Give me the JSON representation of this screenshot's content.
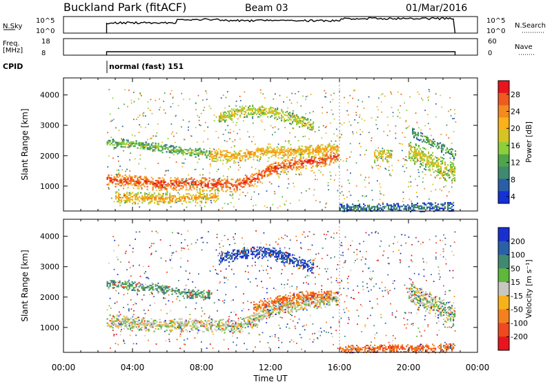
{
  "header": {
    "station": "Buckland Park (fitACF)",
    "beam": "Beam 03",
    "date": "01/Mar/2016"
  },
  "panels": {
    "nsky": {
      "label": "N.Sky",
      "top_tick": "10^5",
      "bottom_tick": "10^0",
      "right_label": "N.Search",
      "right_top": "10^5",
      "right_bottom": "10^0"
    },
    "freq": {
      "label": "Freq.",
      "unit": "[MHz]",
      "top_tick": "18",
      "bottom_tick": "8",
      "right_label": "Nave",
      "right_top": "60",
      "right_bottom": "0"
    },
    "cpid": {
      "label": "CPID",
      "value": "normal (fast) 151"
    }
  },
  "colorbars": {
    "power": {
      "label": "Power [dB]",
      "ticks": [
        "28",
        "24",
        "20",
        "16",
        "12",
        "8",
        "4"
      ],
      "colors": [
        "#e8141e",
        "#ef5a1e",
        "#f58a1f",
        "#f9b21b",
        "#d7c424",
        "#8ccf3a",
        "#4ea54a",
        "#3f8a70",
        "#2a5fa8",
        "#1430d6"
      ]
    },
    "velocity": {
      "label": "Velocity [m s⁻¹]",
      "ticks": [
        "200",
        "100",
        "50",
        "15",
        "-15",
        "-50",
        "-100",
        "-200"
      ],
      "colors": [
        "#1a2fd0",
        "#2a60a8",
        "#3f8a70",
        "#5db83c",
        "#c8c8c0",
        "#f7b21a",
        "#f5801f",
        "#ef4a1f",
        "#e8141e"
      ]
    }
  },
  "chart_data": [
    {
      "type": "heatmap",
      "title": "Power",
      "xlabel": "",
      "ylabel": "Slant Range [km]",
      "x_ticks": [
        "00:00",
        "04:00",
        "08:00",
        "12:00",
        "16:00",
        "20:00",
        "00:00"
      ],
      "y_ticks": [
        "1000",
        "2000",
        "3000",
        "4000"
      ],
      "xlim": [
        0,
        24
      ],
      "ylim": [
        180,
        4560
      ],
      "units": "dB",
      "bands": [
        {
          "x": [
            2.5,
            4.0,
            5.5,
            7.0,
            8.5,
            10.0,
            11.0,
            12.0,
            13.5,
            15.0,
            15.9
          ],
          "y": [
            1250,
            1180,
            1100,
            1120,
            1100,
            1050,
            1250,
            1600,
            1780,
            1900,
            2000
          ],
          "w": 220,
          "value": 28
        },
        {
          "x": [
            2.5,
            4.0,
            5.5,
            7.0,
            8.5
          ],
          "y": [
            2450,
            2400,
            2300,
            2150,
            2100
          ],
          "w": 150,
          "value": 14
        },
        {
          "x": [
            3.0,
            4.5,
            6.0,
            7.5,
            9.0
          ],
          "y": [
            650,
            620,
            600,
            640,
            700
          ],
          "w": 180,
          "value": 22
        },
        {
          "x": [
            8.5,
            10.0,
            11.5,
            13.0,
            14.5,
            15.9
          ],
          "y": [
            2050,
            2000,
            2150,
            2150,
            2200,
            2250
          ],
          "w": 200,
          "value": 22
        },
        {
          "x": [
            9.0,
            10.5,
            12.0,
            13.5,
            14.5
          ],
          "y": [
            3300,
            3500,
            3500,
            3200,
            3000
          ],
          "w": 200,
          "value": 18
        },
        {
          "x": [
            20.0,
            21.0,
            22.0,
            22.7
          ],
          "y": [
            2200,
            1900,
            1600,
            1400
          ],
          "w": 350,
          "value": 18
        },
        {
          "x": [
            20.2,
            21.2,
            22.2,
            22.7
          ],
          "y": [
            2800,
            2500,
            2200,
            2050
          ],
          "w": 150,
          "value": 12
        },
        {
          "x": [
            16.0,
            19.0,
            22.7
          ],
          "y": [
            300,
            320,
            360
          ],
          "w": 150,
          "value": 8
        },
        {
          "x": [
            18.0,
            19.0
          ],
          "y": [
            2050,
            2000
          ],
          "w": 220,
          "value": 20
        }
      ]
    },
    {
      "type": "heatmap",
      "title": "Velocity",
      "xlabel": "Time UT",
      "ylabel": "Slant Range [km]",
      "x_ticks": [
        "00:00",
        "04:00",
        "08:00",
        "12:00",
        "16:00",
        "20:00",
        "00:00"
      ],
      "y_ticks": [
        "1000",
        "2000",
        "3000",
        "4000"
      ],
      "xlim": [
        0,
        24
      ],
      "ylim": [
        180,
        4560
      ],
      "units": "m s^-1",
      "bands": [
        {
          "x": [
            2.5,
            4.0,
            5.5,
            7.0,
            8.5,
            10.0,
            11.0,
            12.0,
            13.5,
            15.0,
            15.9
          ],
          "y": [
            1250,
            1180,
            1100,
            1120,
            1100,
            1050,
            1250,
            1600,
            1780,
            1900,
            2000
          ],
          "w": 220,
          "value": 0
        },
        {
          "x": [
            11.0,
            12.5,
            14.0,
            15.5
          ],
          "y": [
            1700,
            1900,
            2050,
            2100
          ],
          "w": 200,
          "value": -60
        },
        {
          "x": [
            2.5,
            4.0,
            5.5,
            7.0,
            8.5
          ],
          "y": [
            2450,
            2400,
            2300,
            2150,
            2100
          ],
          "w": 150,
          "value": 40
        },
        {
          "x": [
            9.0,
            10.5,
            12.0,
            13.5,
            14.5
          ],
          "y": [
            3300,
            3500,
            3500,
            3200,
            3000
          ],
          "w": 200,
          "value": 150
        },
        {
          "x": [
            20.0,
            21.0,
            22.0,
            22.7
          ],
          "y": [
            2200,
            1900,
            1600,
            1400
          ],
          "w": 350,
          "value": 5
        },
        {
          "x": [
            16.0,
            19.0,
            22.7
          ],
          "y": [
            300,
            320,
            360
          ],
          "w": 150,
          "value": -70
        }
      ]
    }
  ]
}
